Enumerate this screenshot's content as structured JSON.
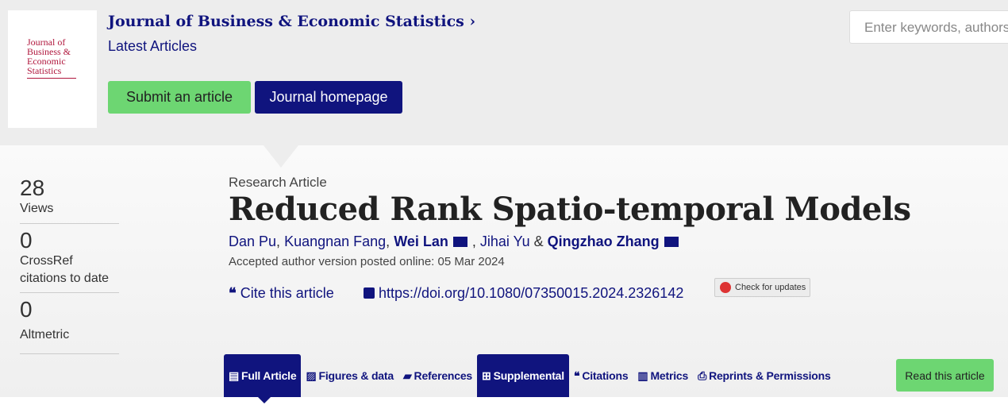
{
  "journal": {
    "cover_text": "Journal of Business & Economic Statistics",
    "title": "Journal of Business & Economic Statistics",
    "chevron": "›",
    "subtitle": "Latest Articles",
    "submit_label": "Submit an article",
    "homepage_label": "Journal homepage"
  },
  "search": {
    "placeholder": "Enter keywords, authors, DOI"
  },
  "metrics": [
    {
      "value": "28",
      "label": "Views"
    },
    {
      "value": "0",
      "label": "CrossRef citations to date"
    },
    {
      "value": "0",
      "label": "Altmetric"
    }
  ],
  "article": {
    "type": "Research Article",
    "title": "Reduced Rank Spatio-temporal Models",
    "authors": [
      {
        "name": "Dan Pu",
        "sep": ", "
      },
      {
        "name": "Kuangnan Fang",
        "sep": ", "
      },
      {
        "name": "Wei Lan",
        "sep": ", ",
        "corresponding": true
      },
      {
        "name": "Jihai Yu",
        "sep": " & "
      },
      {
        "name": "Qingzhao Zhang",
        "sep": "",
        "corresponding": true
      }
    ],
    "accepted": "Accepted author version posted online: 05 Mar 2024",
    "cite_label": "Cite this article",
    "doi": "https://doi.org/10.1080/07350015.2024.2326142",
    "check_updates": "Check for updates"
  },
  "tabs": [
    {
      "label": "Full Article",
      "icon": "file-icon",
      "active": true
    },
    {
      "label": "Figures & data",
      "icon": "image-icon"
    },
    {
      "label": "References",
      "icon": "book-icon"
    },
    {
      "label": "Supplemental",
      "icon": "plus-square-icon",
      "active": true
    },
    {
      "label": "Citations",
      "icon": "quote-icon"
    },
    {
      "label": "Metrics",
      "icon": "bar-chart-icon"
    },
    {
      "label": "Reprints & Permissions",
      "icon": "print-icon"
    }
  ],
  "read_label": "Read this article",
  "colors": {
    "brand": "#10147e",
    "green": "#6dd672",
    "cover": "#b0173d"
  }
}
